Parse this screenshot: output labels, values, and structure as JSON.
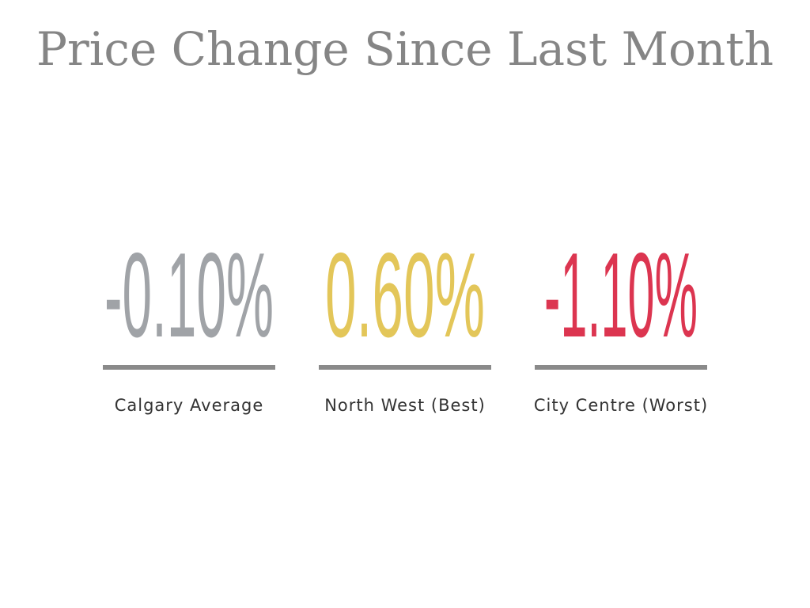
{
  "title": "Price Change Since Last Month",
  "stats": [
    {
      "value": "-0.10%",
      "label": "Calgary Average",
      "color": "#a0a3a7"
    },
    {
      "value": "0.60%",
      "label": "North West (Best)",
      "color": "#e3c659"
    },
    {
      "value": "-1.10%",
      "label": "City Centre (Worst)",
      "color": "#dc3550"
    }
  ]
}
